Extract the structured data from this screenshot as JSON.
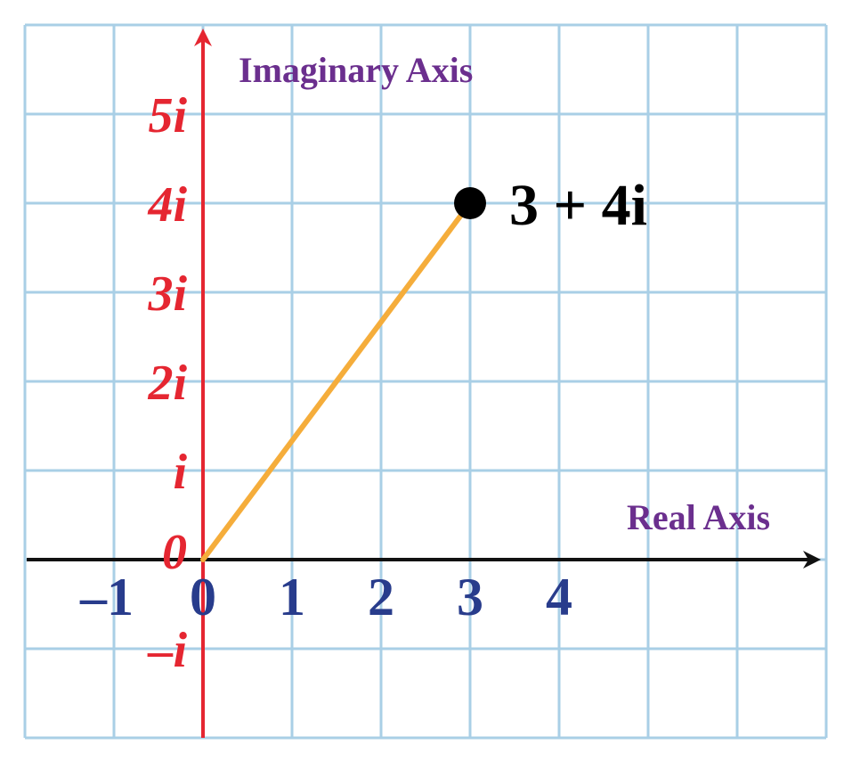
{
  "colors": {
    "grid": "#a9cfe6",
    "imag_axis": "#e52631",
    "real_axis": "#111111",
    "axis_title": "#6b2f8e",
    "real_ticks": "#283c8c",
    "imag_ticks": "#e52631",
    "segment": "#f5ad3b",
    "point": "#000000"
  },
  "titles": {
    "imaginary_axis": "Imaginary Axis",
    "real_axis": "Real Axis"
  },
  "real_ticks": [
    {
      "value": -1,
      "label": "–1"
    },
    {
      "value": 0,
      "label": "0"
    },
    {
      "value": 1,
      "label": "1"
    },
    {
      "value": 2,
      "label": "2"
    },
    {
      "value": 3,
      "label": "3"
    },
    {
      "value": 4,
      "label": "4"
    }
  ],
  "imag_ticks": [
    {
      "value": -1,
      "label": "–i"
    },
    {
      "value": 0,
      "label": "0"
    },
    {
      "value": 1,
      "label": "i"
    },
    {
      "value": 2,
      "label": "2i"
    },
    {
      "value": 3,
      "label": "3i"
    },
    {
      "value": 4,
      "label": "4i"
    },
    {
      "value": 5,
      "label": "5i"
    }
  ],
  "point": {
    "re": 3,
    "im": 4,
    "label": "3 + 4i"
  },
  "grid": {
    "x_range": [
      -2,
      7
    ],
    "y_range": [
      -2,
      6
    ]
  }
}
